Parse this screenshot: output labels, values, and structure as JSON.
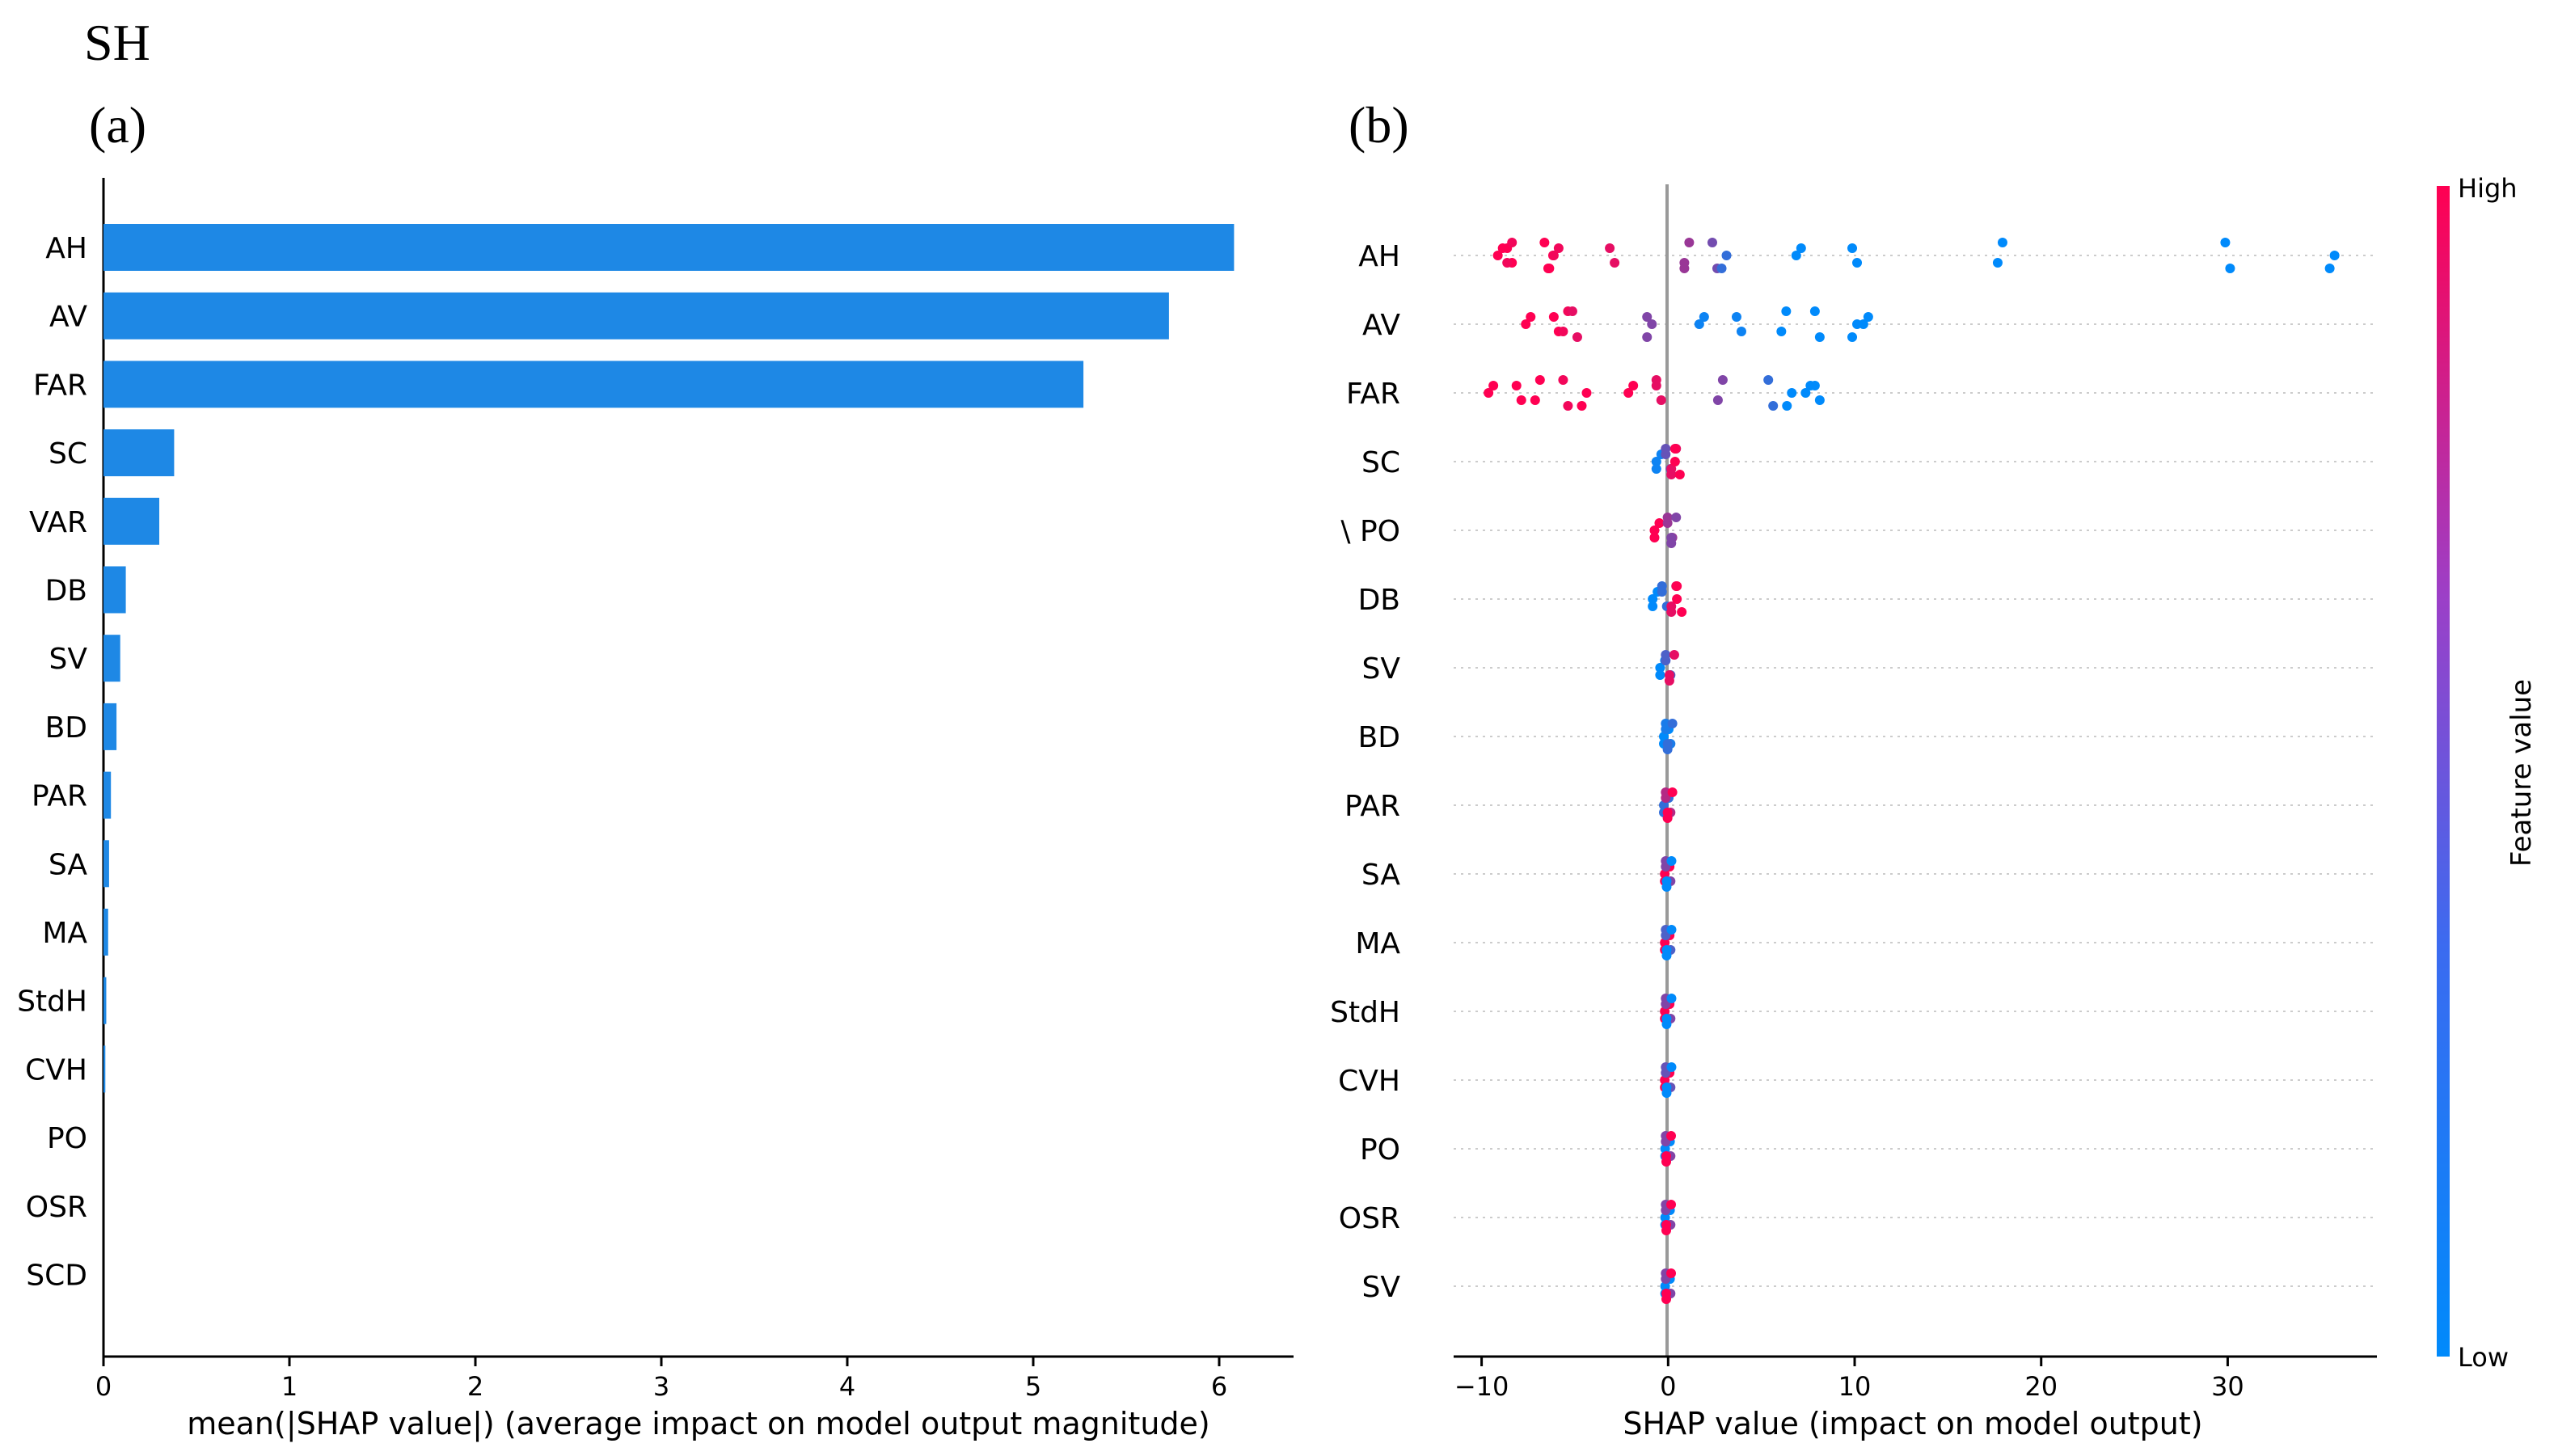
{
  "figure_title": "SH",
  "colors": {
    "bar": "#1e88e5",
    "low": "#008afb",
    "high": "#ff0052",
    "axis": "#000000",
    "zero": "#999999",
    "grid": "#cccccc"
  },
  "chart_data": [
    {
      "type": "bar",
      "panel_label": "(a)",
      "orientation": "horizontal",
      "title": "",
      "xlabel": "mean(|SHAP value|) (average impact on model output magnitude)",
      "ylabel": "",
      "xlim": [
        0,
        6.4
      ],
      "xticks": [
        "0",
        "1",
        "2",
        "3",
        "4",
        "5",
        "6"
      ],
      "categories": [
        "AH",
        "AV",
        "FAR",
        "SC",
        "VAR",
        "DB",
        "SV",
        "BD",
        "PAR",
        "SA",
        "MA",
        "StdH",
        "CVH",
        "PO",
        "OSR",
        "SCD"
      ],
      "values": [
        6.08,
        5.73,
        5.27,
        0.38,
        0.3,
        0.12,
        0.09,
        0.07,
        0.04,
        0.03,
        0.025,
        0.015,
        0.01,
        0.0,
        0.0,
        0.0
      ]
    },
    {
      "type": "scatter",
      "panel_label": "(b)",
      "subtype": "beeswarm",
      "title": "",
      "xlabel": "SHAP value (impact on model output)",
      "xlim": [
        -11.5,
        38
      ],
      "xticks": [
        "−10",
        "0",
        "10",
        "20",
        "30"
      ],
      "categories": [
        "AH",
        "AV",
        "FAR",
        "SC",
        "\\ PO",
        "DB",
        "SV",
        "BD",
        "PAR",
        "SA",
        "MA",
        "StdH",
        "CVH",
        "PO",
        "OSR",
        "SV"
      ],
      "colorbar": {
        "label": "Feature value",
        "high": "High",
        "low": "Low"
      },
      "series": [
        {
          "name": "AH",
          "points": [
            [
              -9,
              1
            ],
            [
              -8.5,
              1
            ],
            [
              -8.5,
              0.95
            ],
            [
              -6.5,
              1
            ],
            [
              -6.3,
              1
            ],
            [
              -6,
              0.95
            ],
            [
              -3,
              0.9
            ],
            [
              1,
              0.6
            ],
            [
              2.5,
              0.45
            ],
            [
              3,
              0.2
            ],
            [
              7,
              0
            ],
            [
              10,
              0
            ],
            [
              17.8,
              0
            ],
            [
              30,
              0
            ],
            [
              35.6,
              0
            ]
          ]
        },
        {
          "name": "AV",
          "points": [
            [
              -7.5,
              1
            ],
            [
              -6,
              1
            ],
            [
              -5.5,
              0.95
            ],
            [
              -5,
              0.9
            ],
            [
              -1,
              0.5
            ],
            [
              1.8,
              0.05
            ],
            [
              3.8,
              0.05
            ],
            [
              6.2,
              0
            ],
            [
              8,
              0
            ],
            [
              10,
              0
            ],
            [
              10.6,
              0
            ]
          ]
        },
        {
          "name": "FAR",
          "points": [
            [
              -9.5,
              1
            ],
            [
              -8,
              1
            ],
            [
              -7,
              1
            ],
            [
              -5.5,
              0.95
            ],
            [
              -4.5,
              1
            ],
            [
              -2,
              1
            ],
            [
              -0.5,
              0.9
            ],
            [
              2.8,
              0.5
            ],
            [
              5.5,
              0.2
            ],
            [
              6.5,
              0
            ],
            [
              7.5,
              0
            ],
            [
              8,
              0
            ]
          ]
        },
        {
          "name": "SC",
          "points": [
            [
              -0.5,
              0.05
            ],
            [
              0,
              0.4
            ],
            [
              0.3,
              0.9
            ],
            [
              0.5,
              1
            ]
          ]
        },
        {
          "name": "\\ PO",
          "points": [
            [
              -0.6,
              1
            ],
            [
              0.1,
              0.6
            ],
            [
              0.3,
              0.5
            ]
          ]
        },
        {
          "name": "DB",
          "points": [
            [
              -0.7,
              0
            ],
            [
              -0.2,
              0.2
            ],
            [
              0.3,
              0.9
            ],
            [
              0.6,
              1
            ]
          ]
        },
        {
          "name": "SV",
          "points": [
            [
              -0.3,
              0
            ],
            [
              0,
              0.3
            ],
            [
              0.2,
              0.9
            ]
          ]
        },
        {
          "name": "BD",
          "points": [
            [
              -0.1,
              0
            ],
            [
              0,
              0.1
            ],
            [
              0.1,
              0.2
            ]
          ]
        },
        {
          "name": "PAR",
          "points": [
            [
              -0.1,
              0.2
            ],
            [
              0,
              0.7
            ],
            [
              0.1,
              1
            ]
          ]
        },
        {
          "name": "SA",
          "points": [
            [
              -0.05,
              1
            ],
            [
              0,
              0.5
            ],
            [
              0.05,
              0
            ]
          ]
        },
        {
          "name": "MA",
          "points": [
            [
              -0.05,
              1
            ],
            [
              0,
              0.3
            ],
            [
              0.05,
              0
            ]
          ]
        },
        {
          "name": "StdH",
          "points": [
            [
              -0.05,
              1
            ],
            [
              0,
              0.5
            ],
            [
              0.05,
              0
            ]
          ]
        },
        {
          "name": "CVH",
          "points": [
            [
              -0.05,
              1
            ],
            [
              0,
              0.4
            ],
            [
              0.05,
              0
            ]
          ]
        },
        {
          "name": "PO",
          "points": [
            [
              -0.03,
              0
            ],
            [
              0,
              0.5
            ],
            [
              0.03,
              1
            ]
          ]
        },
        {
          "name": "OSR",
          "points": [
            [
              -0.03,
              0
            ],
            [
              0,
              0.5
            ],
            [
              0.03,
              1
            ]
          ]
        },
        {
          "name": "SV",
          "points": [
            [
              -0.03,
              0
            ],
            [
              0,
              0.5
            ],
            [
              0.03,
              1
            ]
          ]
        }
      ]
    }
  ]
}
